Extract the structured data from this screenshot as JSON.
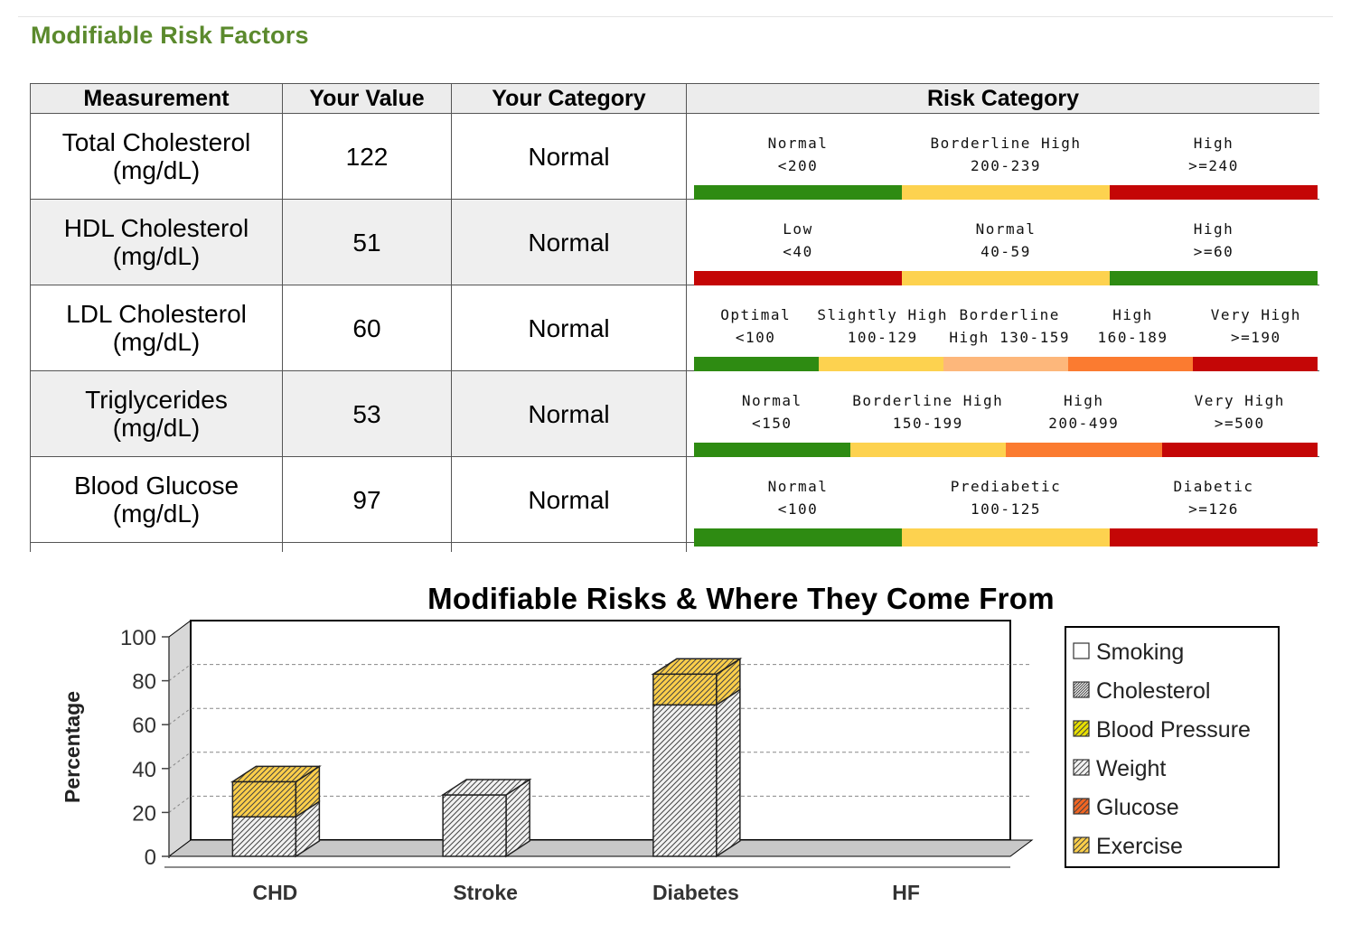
{
  "section_title": "Modifiable Risk Factors",
  "table": {
    "headers": [
      "Measurement",
      "Your Value",
      "Your Category",
      "Risk Category"
    ],
    "rows": [
      {
        "name": "Total Cholesterol",
        "unit": "(mg/dL)",
        "value": "122",
        "category": "Normal",
        "segments": [
          {
            "label": "Normal",
            "range": "<200",
            "color": "#2e8b12"
          },
          {
            "label": "Borderline High",
            "range": "200-239",
            "color": "#fdd24f"
          },
          {
            "label": "High",
            "range": ">=240",
            "color": "#c40606"
          }
        ]
      },
      {
        "name": "HDL Cholesterol",
        "unit": "(mg/dL)",
        "value": "51",
        "category": "Normal",
        "segments": [
          {
            "label": "Low",
            "range": "<40",
            "color": "#c40606"
          },
          {
            "label": "Normal",
            "range": "40-59",
            "color": "#fdd24f"
          },
          {
            "label": "High",
            "range": ">=60",
            "color": "#2e8b12"
          }
        ]
      },
      {
        "name": "LDL Cholesterol",
        "unit": "(mg/dL)",
        "value": "60",
        "category": "Normal",
        "segments": [
          {
            "label": "Optimal",
            "range": "<100",
            "color": "#2e8b12"
          },
          {
            "label": "Slightly High",
            "range": "100-129",
            "color": "#fdd24f"
          },
          {
            "label": "Borderline",
            "range": "High 130-159",
            "color": "#fdb77b"
          },
          {
            "label": "High",
            "range": "160-189",
            "color": "#fb7b30"
          },
          {
            "label": "Very High",
            "range": ">=190",
            "color": "#c40606"
          }
        ]
      },
      {
        "name": "Triglycerides",
        "unit": "(mg/dL)",
        "value": "53",
        "category": "Normal",
        "segments": [
          {
            "label": "Normal",
            "range": "<150",
            "color": "#2e8b12"
          },
          {
            "label": "Borderline High",
            "range": "150-199",
            "color": "#fdd24f"
          },
          {
            "label": "High",
            "range": "200-499",
            "color": "#fb7b30"
          },
          {
            "label": "Very High",
            "range": ">=500",
            "color": "#c40606"
          }
        ]
      },
      {
        "name": "Blood Glucose",
        "unit": "(mg/dL)",
        "value": "97",
        "category": "Normal",
        "segments": [
          {
            "label": "Normal",
            "range": "<100",
            "color": "#2e8b12"
          },
          {
            "label": "Prediabetic",
            "range": "100-125",
            "color": "#fdd24f"
          },
          {
            "label": "Diabetic",
            "range": ">=126",
            "color": "#c40606"
          }
        ]
      }
    ]
  },
  "chart_data": {
    "type": "bar",
    "stacked": true,
    "title": "Modifiable Risks & Where They Come From",
    "xlabel": "",
    "ylabel": "Percentage",
    "ylim": [
      0,
      100
    ],
    "yticks": [
      0,
      20,
      40,
      60,
      80,
      100
    ],
    "grid": true,
    "legend_position": "right",
    "categories": [
      "CHD",
      "Stroke",
      "Diabetes",
      "HF"
    ],
    "series": [
      {
        "name": "Smoking",
        "values": [
          0,
          0,
          0,
          0
        ],
        "color": "#ffffff",
        "pattern": "none"
      },
      {
        "name": "Cholesterol",
        "values": [
          0,
          0,
          0,
          0
        ],
        "color": "#9a9a9a",
        "pattern": "dense-hatch"
      },
      {
        "name": "Blood Pressure",
        "values": [
          0,
          0,
          0,
          0
        ],
        "color": "#e8e000",
        "pattern": "hatch"
      },
      {
        "name": "Weight",
        "values": [
          18,
          28,
          69,
          0
        ],
        "color": "#f2f2f2",
        "pattern": "hatch"
      },
      {
        "name": "Glucose",
        "values": [
          0,
          0,
          0,
          0
        ],
        "color": "#f26522",
        "pattern": "hatch"
      },
      {
        "name": "Exercise",
        "values": [
          16,
          0,
          14,
          0
        ],
        "color": "#fccf4a",
        "pattern": "hatch"
      }
    ]
  }
}
